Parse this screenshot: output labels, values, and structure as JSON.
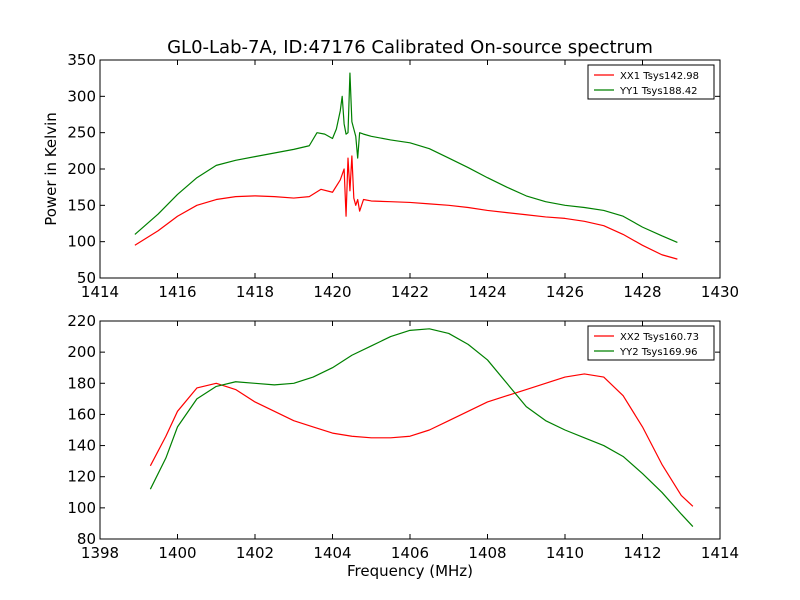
{
  "title": "GL0-Lab-7A, ID:47176 Calibrated On-source spectrum",
  "xlabel": "Frequency (MHz)",
  "ylabel": "Power in Kelvin",
  "colors": {
    "xx": "#ff0000",
    "yy": "#008000"
  },
  "chart_data": [
    {
      "type": "line",
      "xlim": [
        1414,
        1430
      ],
      "ylim": [
        50,
        350
      ],
      "xticks": [
        1414,
        1416,
        1418,
        1420,
        1422,
        1424,
        1426,
        1428,
        1430
      ],
      "yticks": [
        50,
        100,
        150,
        200,
        250,
        300,
        350
      ],
      "ylabel": "Power in Kelvin",
      "legend_position": "top-right",
      "series": [
        {
          "name": "XX1 Tsys142.98",
          "color": "#ff0000",
          "x": [
            1414.9,
            1415.5,
            1416.0,
            1416.5,
            1417.0,
            1417.5,
            1418.0,
            1418.5,
            1419.0,
            1419.4,
            1419.7,
            1420.0,
            1420.2,
            1420.3,
            1420.35,
            1420.4,
            1420.45,
            1420.5,
            1420.55,
            1420.6,
            1420.65,
            1420.7,
            1420.8,
            1421.0,
            1421.5,
            1422.0,
            1422.5,
            1423.0,
            1423.5,
            1424.0,
            1424.5,
            1425.0,
            1425.5,
            1426.0,
            1426.5,
            1427.0,
            1427.5,
            1428.0,
            1428.5,
            1428.9
          ],
          "y": [
            95,
            115,
            135,
            150,
            158,
            162,
            163,
            162,
            160,
            162,
            172,
            168,
            185,
            200,
            135,
            215,
            170,
            218,
            160,
            150,
            158,
            142,
            158,
            156,
            155,
            154,
            152,
            150,
            147,
            143,
            140,
            137,
            134,
            132,
            128,
            122,
            110,
            95,
            82,
            76
          ]
        },
        {
          "name": "YY1 Tsys188.42",
          "color": "#008000",
          "x": [
            1414.9,
            1415.5,
            1416.0,
            1416.5,
            1417.0,
            1417.5,
            1418.0,
            1418.5,
            1419.0,
            1419.4,
            1419.6,
            1419.8,
            1420.0,
            1420.1,
            1420.2,
            1420.25,
            1420.3,
            1420.35,
            1420.4,
            1420.45,
            1420.5,
            1420.55,
            1420.6,
            1420.65,
            1420.7,
            1420.8,
            1421.0,
            1421.5,
            1422.0,
            1422.5,
            1423.0,
            1423.5,
            1424.0,
            1424.5,
            1425.0,
            1425.5,
            1426.0,
            1426.5,
            1427.0,
            1427.5,
            1428.0,
            1428.5,
            1428.9
          ],
          "y": [
            110,
            138,
            165,
            188,
            205,
            212,
            217,
            222,
            227,
            232,
            250,
            248,
            242,
            255,
            280,
            300,
            262,
            248,
            250,
            332,
            265,
            255,
            245,
            215,
            250,
            248,
            245,
            240,
            236,
            228,
            215,
            202,
            188,
            175,
            163,
            155,
            150,
            147,
            143,
            135,
            120,
            108,
            99
          ]
        }
      ]
    },
    {
      "type": "line",
      "xlim": [
        1398,
        1414
      ],
      "ylim": [
        80,
        220
      ],
      "xticks": [
        1398,
        1400,
        1402,
        1404,
        1406,
        1408,
        1410,
        1412,
        1414
      ],
      "yticks": [
        80,
        100,
        120,
        140,
        160,
        180,
        200,
        220
      ],
      "xlabel": "Frequency (MHz)",
      "legend_position": "top-right",
      "series": [
        {
          "name": "XX2 Tsys160.73",
          "color": "#ff0000",
          "x": [
            1399.3,
            1399.7,
            1400.0,
            1400.5,
            1401.0,
            1401.5,
            1402.0,
            1402.5,
            1403.0,
            1403.5,
            1404.0,
            1404.5,
            1405.0,
            1405.5,
            1406.0,
            1406.5,
            1407.0,
            1407.5,
            1408.0,
            1408.5,
            1409.0,
            1409.5,
            1410.0,
            1410.5,
            1411.0,
            1411.5,
            1412.0,
            1412.5,
            1413.0,
            1413.3
          ],
          "y": [
            127,
            146,
            162,
            177,
            180,
            176,
            168,
            162,
            156,
            152,
            148,
            146,
            145,
            145,
            146,
            150,
            156,
            162,
            168,
            172,
            176,
            180,
            184,
            186,
            184,
            172,
            152,
            128,
            108,
            101
          ]
        },
        {
          "name": "YY2 Tsys169.96",
          "color": "#008000",
          "x": [
            1399.3,
            1399.7,
            1400.0,
            1400.5,
            1401.0,
            1401.5,
            1402.0,
            1402.5,
            1403.0,
            1403.5,
            1404.0,
            1404.5,
            1405.0,
            1405.5,
            1406.0,
            1406.5,
            1407.0,
            1407.5,
            1408.0,
            1408.5,
            1409.0,
            1409.5,
            1410.0,
            1410.5,
            1411.0,
            1411.5,
            1412.0,
            1412.5,
            1413.0,
            1413.3
          ],
          "y": [
            112,
            132,
            152,
            170,
            178,
            181,
            180,
            179,
            180,
            184,
            190,
            198,
            204,
            210,
            214,
            215,
            212,
            205,
            195,
            180,
            165,
            156,
            150,
            145,
            140,
            133,
            122,
            110,
            96,
            88
          ]
        }
      ]
    }
  ]
}
